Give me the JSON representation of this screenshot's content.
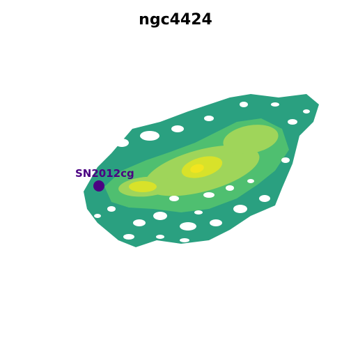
{
  "figure": {
    "title": "ngc4424",
    "background_color": "#ffffff",
    "colormap": "viridis",
    "axes_visible": false
  },
  "marker": {
    "label": "SN2012cg",
    "color": "#4b0082",
    "shape": "filled-circle"
  },
  "palette": {
    "outer": "#2aa080",
    "mid": "#4fbf70",
    "inner": "#9fd55a",
    "core": "#d8e22a",
    "peak": "#f2e51f"
  }
}
